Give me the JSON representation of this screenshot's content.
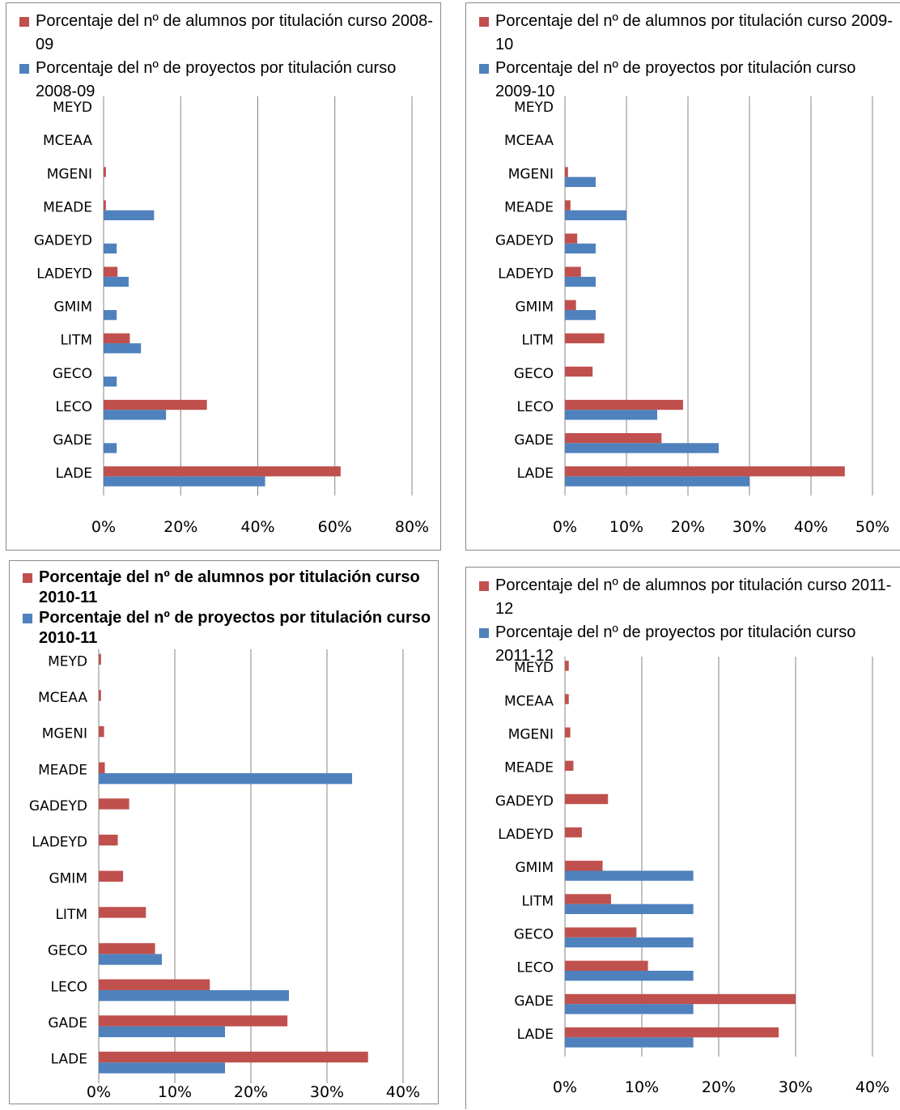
{
  "chart_data": [
    {
      "type": "bar",
      "orientation": "horizontal",
      "categories": [
        "LADE",
        "GADE",
        "LECO",
        "GECO",
        "LITM",
        "GMIM",
        "LADEYD",
        "GADEYD",
        "MEADE",
        "MGENI",
        "MCEAA",
        "MEYD"
      ],
      "series": [
        {
          "name": "Porcentaje del nº de alumnos por titulación curso 2008-09",
          "color": "#c0504d",
          "values": [
            61.5,
            0,
            26.8,
            0,
            6.8,
            0,
            3.6,
            0,
            0.6,
            0.6,
            0,
            0
          ]
        },
        {
          "name": "Porcentaje del nº de proyectos por titulación curso 2008-09",
          "color": "#4f81bd",
          "values": [
            41.9,
            3.4,
            16.2,
            3.4,
            9.7,
            3.4,
            6.5,
            3.4,
            13.1,
            0,
            0,
            0
          ]
        }
      ],
      "xlim": [
        0,
        80
      ],
      "ticks": [
        "0%",
        "20%",
        "40%",
        "60%",
        "80%"
      ],
      "grid": true,
      "legend_position": "top"
    },
    {
      "type": "bar",
      "orientation": "horizontal",
      "categories": [
        "LADE",
        "GADE",
        "LECO",
        "GECO",
        "LITM",
        "GMIM",
        "LADEYD",
        "GADEYD",
        "MEADE",
        "MGENI",
        "MCEAA",
        "MEYD"
      ],
      "series": [
        {
          "name": "Porcentaje del nº de alumnos por titulación curso 2009-10",
          "color": "#c0504d",
          "values": [
            45.5,
            15.7,
            19.2,
            4.5,
            6.4,
            1.8,
            2.6,
            2.0,
            0.9,
            0.5,
            0,
            0
          ]
        },
        {
          "name": "Porcentaje del nº de proyectos por titulación curso 2009-10",
          "color": "#4f81bd",
          "values": [
            30.0,
            25.0,
            15.0,
            0,
            0,
            5.0,
            5.0,
            5.0,
            10.0,
            5.0,
            0,
            0
          ]
        }
      ],
      "xlim": [
        0,
        50
      ],
      "ticks": [
        "0%",
        "10%",
        "20%",
        "30%",
        "40%",
        "50%"
      ],
      "grid": true,
      "legend_position": "top"
    },
    {
      "type": "bar",
      "orientation": "horizontal",
      "categories": [
        "LADE",
        "GADE",
        "LECO",
        "GECO",
        "LITM",
        "GMIM",
        "LADEYD",
        "GADEYD",
        "MEADE",
        "MGENI",
        "MCEAA",
        "MEYD"
      ],
      "series": [
        {
          "name": "Porcentaje del nº de alumnos por titulación curso 2010-11",
          "color": "#c0504d",
          "values": [
            35.4,
            24.8,
            14.6,
            7.4,
            6.2,
            3.2,
            2.5,
            4.0,
            0.8,
            0.7,
            0.3,
            0.3
          ]
        },
        {
          "name": "Porcentaje del nº de proyectos por titulación curso 2010-11",
          "color": "#4f81bd",
          "values": [
            16.6,
            16.6,
            25.0,
            8.3,
            0,
            0,
            0,
            0,
            33.3,
            0,
            0,
            0
          ]
        }
      ],
      "xlim": [
        0,
        40
      ],
      "ticks": [
        "0%",
        "10%",
        "20%",
        "30%",
        "40%"
      ],
      "grid": true,
      "legend_position": "top"
    },
    {
      "type": "bar",
      "orientation": "horizontal",
      "categories": [
        "LADE",
        "GADE",
        "LECO",
        "GECO",
        "LITM",
        "GMIM",
        "LADEYD",
        "GADEYD",
        "MEADE",
        "MGENI",
        "MCEAA",
        "MEYD"
      ],
      "series": [
        {
          "name": "Porcentaje del nº de alumnos por titulación curso 2011-12",
          "color": "#c0504d",
          "values": [
            27.8,
            30.0,
            10.8,
            9.3,
            6.0,
            4.9,
            2.2,
            5.6,
            1.1,
            0.7,
            0.5,
            0.5
          ]
        },
        {
          "name": "Porcentaje del nº de proyectos por titulación curso 2011-12",
          "color": "#4f81bd",
          "values": [
            16.7,
            16.7,
            16.7,
            16.7,
            16.7,
            16.7,
            0,
            0,
            0,
            0,
            0,
            0
          ]
        }
      ],
      "xlim": [
        0,
        40
      ],
      "ticks": [
        "0%",
        "10%",
        "20%",
        "30%",
        "40%"
      ],
      "grid": true,
      "legend_position": "top"
    }
  ]
}
